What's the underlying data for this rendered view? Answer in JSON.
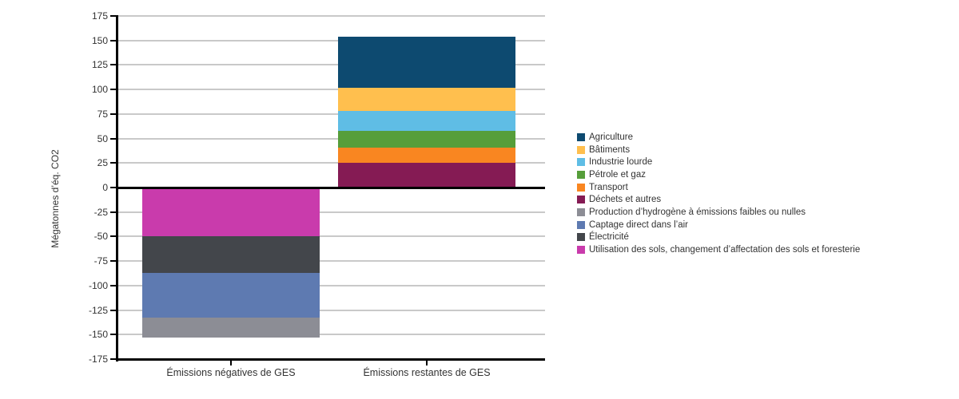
{
  "chart_data": {
    "type": "bar",
    "stacked": true,
    "title": "",
    "ylabel": "Mégatonnes d’éq. CO2",
    "xlabel": "",
    "ylim": [
      -175,
      175
    ],
    "ytick_step": 25,
    "grid": true,
    "legend_position": "right",
    "categories": [
      "Émissions négatives de GES",
      "Émissions restantes de GES"
    ],
    "series": [
      {
        "name": "Agriculture",
        "color": "#0d4a70",
        "values": [
          0,
          52
        ]
      },
      {
        "name": "Bâtiments",
        "color": "#ffbf4e",
        "values": [
          0,
          24
        ]
      },
      {
        "name": "Industrie lourde",
        "color": "#5fbde5",
        "values": [
          0,
          20
        ]
      },
      {
        "name": "Pétrole et gaz",
        "color": "#569e3a",
        "values": [
          0,
          17
        ]
      },
      {
        "name": "Transport",
        "color": "#f98621",
        "values": [
          0,
          16
        ]
      },
      {
        "name": "Déchets et autres",
        "color": "#851b54",
        "values": [
          0,
          25
        ]
      },
      {
        "name": "Production d’hydrogène à émissions faibles ou nulles",
        "color": "#8c8d95",
        "values": [
          -20,
          0
        ]
      },
      {
        "name": "Captage direct dans l’air",
        "color": "#5e7ab1",
        "values": [
          -46,
          0
        ]
      },
      {
        "name": "Électricité",
        "color": "#43464b",
        "values": [
          -37,
          0
        ]
      },
      {
        "name": "Utilisation des sols, changement d’affectation des sols et foresterie",
        "color": "#c93bac",
        "values": [
          -50,
          0
        ]
      }
    ],
    "totals": {
      "negative": -153,
      "positive": 154
    },
    "axis_color": "#000000",
    "gridline_color": "#c9c9c9",
    "text_color": "#333333"
  }
}
